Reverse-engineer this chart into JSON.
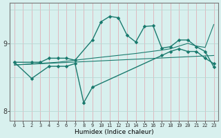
{
  "xlabel": "Humidex (Indice chaleur)",
  "bg_color": "#d8f0ee",
  "line_color": "#1a7a6e",
  "vgrid_color": "#e0b0b8",
  "hgrid_color": "#b8d8d4",
  "xlim": [
    -0.5,
    23.5
  ],
  "ylim": [
    7.85,
    9.6
  ],
  "yticks": [
    8,
    9
  ],
  "xticks": [
    0,
    1,
    2,
    3,
    4,
    5,
    6,
    7,
    8,
    9,
    10,
    11,
    12,
    13,
    14,
    15,
    16,
    17,
    18,
    19,
    20,
    21,
    22,
    23
  ],
  "line1": {
    "x": [
      0,
      2,
      3,
      4,
      5,
      6,
      7,
      9,
      10,
      11,
      12,
      13,
      14,
      15,
      16,
      17,
      18,
      19,
      20,
      21,
      22,
      23
    ],
    "y": [
      8.72,
      8.72,
      8.72,
      8.78,
      8.78,
      8.78,
      8.75,
      9.05,
      9.32,
      9.4,
      9.38,
      9.12,
      9.02,
      9.25,
      9.26,
      8.93,
      8.95,
      9.05,
      9.05,
      8.95,
      8.88,
      8.65
    ]
  },
  "line2": {
    "x": [
      0,
      2,
      4,
      5,
      6,
      7,
      8,
      9,
      17,
      18,
      19,
      20,
      21,
      22,
      23
    ],
    "y": [
      8.72,
      8.48,
      8.66,
      8.66,
      8.66,
      8.7,
      8.12,
      8.35,
      8.82,
      8.88,
      8.92,
      8.88,
      8.88,
      8.78,
      8.7
    ]
  },
  "line3_straight": {
    "x": [
      0,
      23
    ],
    "y": [
      8.68,
      8.82
    ]
  },
  "line4_rising": {
    "x": [
      0,
      5,
      9,
      14,
      17,
      18,
      19,
      20,
      21,
      22,
      23
    ],
    "y": [
      8.68,
      8.72,
      8.78,
      8.85,
      8.9,
      8.92,
      8.96,
      9.0,
      8.96,
      8.94,
      9.28
    ]
  }
}
